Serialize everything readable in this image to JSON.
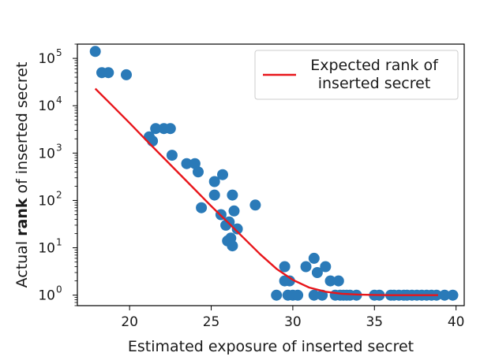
{
  "chart_data": {
    "type": "scatter",
    "xlabel": "Estimated exposure of inserted secret",
    "ylabel": {
      "before": "Actual ",
      "bold": "rank",
      "after": " of inserted secret"
    },
    "xlim": [
      16.8,
      40.5
    ],
    "ylim": [
      0.6,
      200000
    ],
    "yscale": "log",
    "x_ticks": [
      20,
      25,
      30,
      35,
      40
    ],
    "y_ticks": [
      {
        "value": 1,
        "label": "10",
        "exp": "0"
      },
      {
        "value": 10,
        "label": "10",
        "exp": "1"
      },
      {
        "value": 100,
        "label": "10",
        "exp": "2"
      },
      {
        "value": 1000,
        "label": "10",
        "exp": "3"
      },
      {
        "value": 10000,
        "label": "10",
        "exp": "4"
      },
      {
        "value": 100000,
        "label": "10",
        "exp": "5"
      }
    ],
    "legend": {
      "position": "top-right",
      "entries": [
        {
          "line1": "Expected rank of",
          "line2": "inserted secret",
          "color": "#e8161b"
        }
      ]
    },
    "grid": false,
    "colors": {
      "points": "#2a7ab8",
      "line": "#e8161b"
    },
    "series": [
      {
        "type": "scatter",
        "points": [
          [
            17.9,
            140000
          ],
          [
            18.3,
            50000
          ],
          [
            18.7,
            50000
          ],
          [
            19.8,
            45000
          ],
          [
            21.2,
            2200
          ],
          [
            21.4,
            1800
          ],
          [
            21.6,
            3300
          ],
          [
            22.1,
            3300
          ],
          [
            22.5,
            3300
          ],
          [
            22.6,
            900
          ],
          [
            23.5,
            600
          ],
          [
            24.0,
            600
          ],
          [
            24.2,
            400
          ],
          [
            24.4,
            70
          ],
          [
            25.2,
            250
          ],
          [
            25.2,
            130
          ],
          [
            25.7,
            350
          ],
          [
            25.6,
            50
          ],
          [
            25.9,
            30
          ],
          [
            26.0,
            14
          ],
          [
            26.2,
            16
          ],
          [
            26.3,
            11
          ],
          [
            26.3,
            130
          ],
          [
            26.4,
            60
          ],
          [
            26.6,
            25
          ],
          [
            26.1,
            35
          ],
          [
            27.7,
            80
          ],
          [
            29.0,
            1
          ],
          [
            29.5,
            4
          ],
          [
            29.5,
            2
          ],
          [
            29.8,
            2
          ],
          [
            29.7,
            1
          ],
          [
            30.0,
            1
          ],
          [
            30.3,
            1
          ],
          [
            30.8,
            4
          ],
          [
            31.3,
            6
          ],
          [
            31.5,
            3
          ],
          [
            31.3,
            1
          ],
          [
            31.8,
            1
          ],
          [
            32.0,
            4
          ],
          [
            32.3,
            2
          ],
          [
            32.6,
            1
          ],
          [
            32.8,
            2
          ],
          [
            32.9,
            1
          ],
          [
            33.1,
            1
          ],
          [
            33.3,
            1
          ],
          [
            33.5,
            1
          ],
          [
            33.9,
            1
          ],
          [
            35.0,
            1
          ],
          [
            35.3,
            1
          ],
          [
            36.0,
            1
          ],
          [
            36.2,
            1
          ],
          [
            36.5,
            1
          ],
          [
            36.8,
            1
          ],
          [
            37.0,
            1
          ],
          [
            37.3,
            1
          ],
          [
            37.6,
            1
          ],
          [
            37.9,
            1
          ],
          [
            38.2,
            1
          ],
          [
            38.5,
            1
          ],
          [
            38.8,
            1
          ],
          [
            39.3,
            1
          ],
          [
            39.8,
            1
          ]
        ]
      },
      {
        "type": "line",
        "name": "Expected rank of inserted secret",
        "points": [
          [
            17.9,
            23000
          ],
          [
            19.0,
            9600
          ],
          [
            20.0,
            4300
          ],
          [
            21.0,
            1900
          ],
          [
            22.0,
            850
          ],
          [
            23.0,
            380
          ],
          [
            24.0,
            170
          ],
          [
            25.0,
            76
          ],
          [
            26.0,
            35
          ],
          [
            27.0,
            16
          ],
          [
            28.0,
            7.3
          ],
          [
            29.0,
            3.6
          ],
          [
            30.0,
            2.1
          ],
          [
            31.0,
            1.45
          ],
          [
            32.0,
            1.18
          ],
          [
            33.0,
            1.07
          ],
          [
            34.0,
            1.03
          ],
          [
            35.0,
            1.01
          ],
          [
            36.0,
            1.0
          ],
          [
            37.0,
            1.0
          ],
          [
            38.0,
            1.0
          ],
          [
            38.9,
            1.0
          ]
        ]
      }
    ]
  }
}
